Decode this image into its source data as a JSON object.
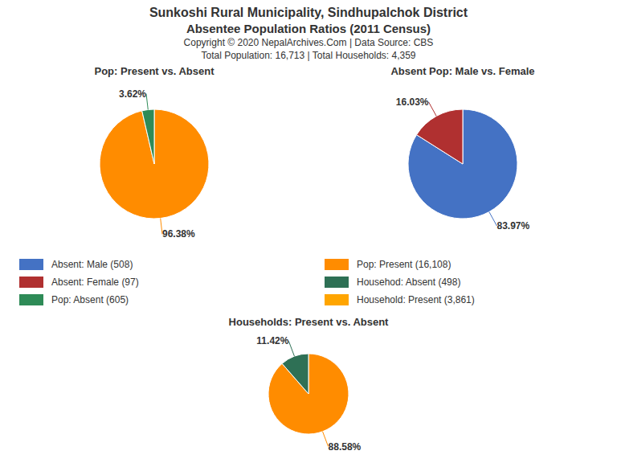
{
  "title": "Sunkoshi Rural Municipality, Sindhupalchok District",
  "subtitle": "Absentee Population Ratios (2011 Census)",
  "annotations": [
    "Copyright © 2020 NepalArchives.Com | Data Source: CBS",
    "Total Population: 16,713 | Total Households: 4,359"
  ],
  "series": [
    {
      "name": "Absent: Male (508)",
      "color": "#4472C4"
    },
    {
      "name": "Absent: Female (97)",
      "color": "#B03030"
    },
    {
      "name": "Pop: Absent (605)",
      "color": "#2E8B57"
    },
    {
      "name": "Pop: Present (16,108)",
      "color": "#FF8C00"
    },
    {
      "name": "Househod: Absent (498)",
      "color": "#2E7055"
    },
    {
      "name": "Household: Present (3,861)",
      "color": "#FFA500"
    }
  ],
  "chart_data": [
    {
      "type": "pie",
      "title": "Pop: Present vs. Absent",
      "values": [
        96.38,
        3.62
      ],
      "value_labels": [
        "96.38%",
        "3.62%"
      ],
      "colors": [
        "#FF8C00",
        "#2E8B57"
      ],
      "data_labels": true
    },
    {
      "type": "pie",
      "title": "Absent Pop: Male vs. Female",
      "values": [
        83.97,
        16.03
      ],
      "value_labels": [
        "83.97%",
        "16.03%"
      ],
      "colors": [
        "#4472C4",
        "#B03030"
      ],
      "data_labels": true
    },
    {
      "type": "pie",
      "title": "Households: Present vs. Absent",
      "values": [
        88.58,
        11.42
      ],
      "value_labels": [
        "88.58%",
        "11.42%"
      ],
      "colors": [
        "#FF8C00",
        "#2E7055"
      ],
      "data_labels": true
    }
  ]
}
